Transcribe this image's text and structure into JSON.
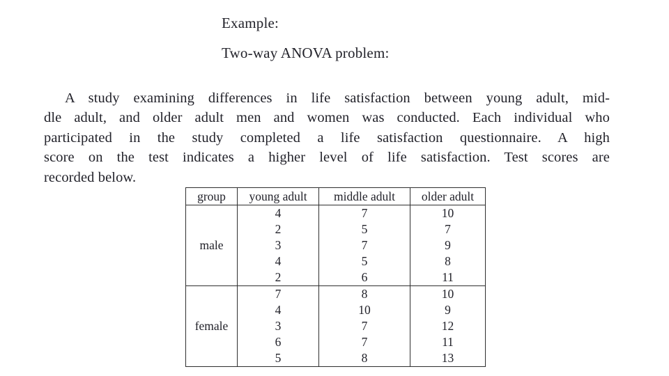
{
  "doc": {
    "heading_example": "Example:",
    "heading_problem": "Two-way ANOVA problem:",
    "paragraph": {
      "lines": [
        "A study examining differences in life satisfaction between young adult, mid-",
        "dle adult, and older adult men and women was conducted. Each individual who",
        "participated in the study completed a life satisfaction questionnaire.  A high",
        "score on the test indicates a higher level of life satisfaction.  Test scores are",
        "recorded below."
      ]
    },
    "colors": {
      "text": "#22222a",
      "table_border": "#2e2e2e",
      "background": "#ffffff"
    }
  },
  "table": {
    "headers": [
      "group",
      "young adult",
      "middle adult",
      "older adult"
    ],
    "sections": [
      {
        "group": "male",
        "rows": [
          [
            "4",
            "7",
            "10"
          ],
          [
            "2",
            "5",
            "7"
          ],
          [
            "3",
            "7",
            "9"
          ],
          [
            "4",
            "5",
            "8"
          ],
          [
            "2",
            "6",
            "11"
          ]
        ]
      },
      {
        "group": "female",
        "rows": [
          [
            "7",
            "8",
            "10"
          ],
          [
            "4",
            "10",
            "9"
          ],
          [
            "3",
            "7",
            "12"
          ],
          [
            "6",
            "7",
            "11"
          ],
          [
            "5",
            "8",
            "13"
          ]
        ]
      }
    ]
  }
}
